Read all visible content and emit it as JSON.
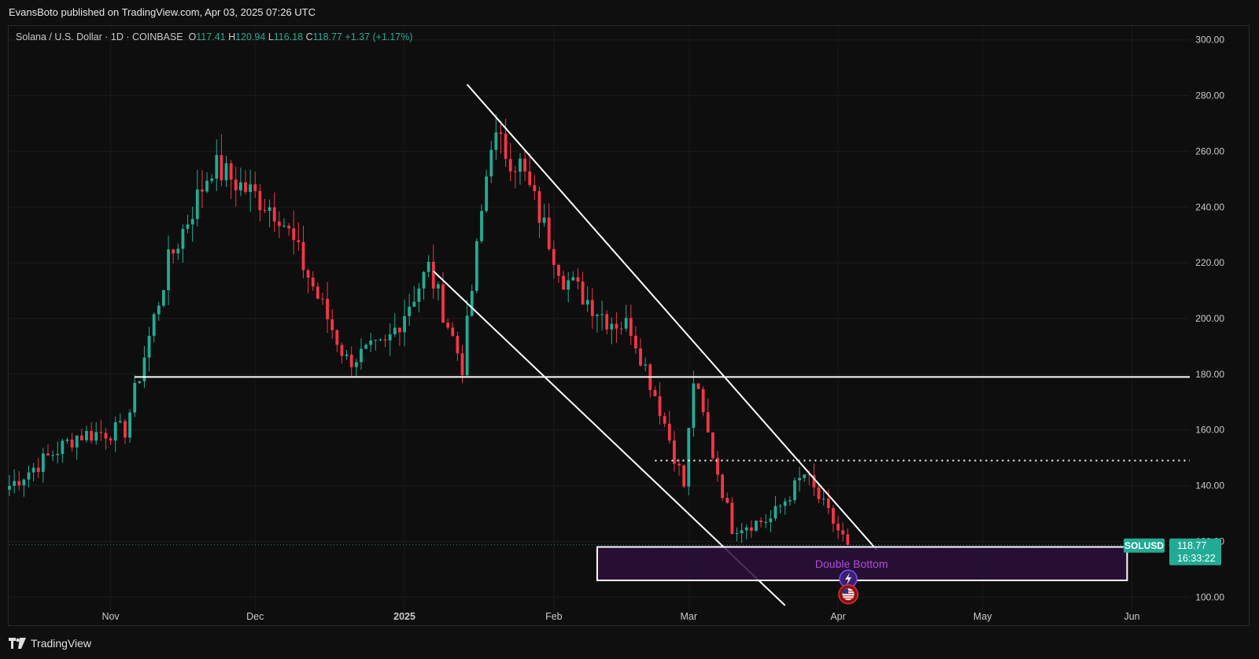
{
  "publish_line": "EvansBoto published on TradingView.com, Apr 03, 2025 07:26 UTC",
  "legend": {
    "symbol": "Solana / U.S. Dollar · 1D · COINBASE",
    "open_label": "O",
    "open": "117.41",
    "high_label": "H",
    "high": "120.94",
    "low_label": "L",
    "low": "116.18",
    "close_label": "C",
    "close": "118.77",
    "change": "+1.37 (+1.17%)"
  },
  "price_tag": {
    "symbol": "SOLUSD",
    "price": "118.77",
    "countdown": "16:33:22"
  },
  "footer": {
    "brand": "TradingView"
  },
  "colors": {
    "up": "#22ab94",
    "down": "#f23645",
    "zone_fill": "#2a0f3a",
    "zone_label": "#b24bd9"
  },
  "chart_data": {
    "type": "candlestick",
    "title": "Solana / U.S. Dollar · 1D · COINBASE",
    "xlabel": "",
    "ylabel": "",
    "ylim": [
      95,
      305
    ],
    "y_ticks": [
      "300.00",
      "280.00",
      "260.00",
      "240.00",
      "220.00",
      "200.00",
      "180.00",
      "160.00",
      "140.00",
      "120.00",
      "100.00"
    ],
    "x_ticks": [
      {
        "label": "Nov",
        "date": "2024-11-01",
        "bold": false
      },
      {
        "label": "Dec",
        "date": "2024-12-01",
        "bold": false
      },
      {
        "label": "2025",
        "date": "2025-01-01",
        "bold": true
      },
      {
        "label": "Feb",
        "date": "2025-02-01",
        "bold": false
      },
      {
        "label": "Mar",
        "date": "2025-03-01",
        "bold": false
      },
      {
        "label": "Apr",
        "date": "2025-04-01",
        "bold": false
      },
      {
        "label": "May",
        "date": "2025-05-01",
        "bold": false
      },
      {
        "label": "Jun",
        "date": "2025-06-01",
        "bold": false
      }
    ],
    "x_range": [
      "2024-10-11",
      "2025-06-13"
    ],
    "key_points": [
      {
        "date": "2024-10-11",
        "price": 140
      },
      {
        "date": "2024-10-25",
        "price": 158
      },
      {
        "date": "2024-11-04",
        "price": 160
      },
      {
        "date": "2024-11-13",
        "price": 220
      },
      {
        "date": "2024-11-22",
        "price": 255
      },
      {
        "date": "2024-12-06",
        "price": 238
      },
      {
        "date": "2024-12-20",
        "price": 185
      },
      {
        "date": "2024-12-28",
        "price": 190
      },
      {
        "date": "2025-01-06",
        "price": 218
      },
      {
        "date": "2025-01-13",
        "price": 183
      },
      {
        "date": "2025-01-19",
        "price": 265
      },
      {
        "date": "2025-01-25",
        "price": 255
      },
      {
        "date": "2025-02-03",
        "price": 215
      },
      {
        "date": "2025-02-12",
        "price": 200
      },
      {
        "date": "2025-02-17",
        "price": 197
      },
      {
        "date": "2025-02-23",
        "price": 168
      },
      {
        "date": "2025-02-28",
        "price": 140
      },
      {
        "date": "2025-03-02",
        "price": 178
      },
      {
        "date": "2025-03-10",
        "price": 125
      },
      {
        "date": "2025-03-18",
        "price": 128
      },
      {
        "date": "2025-03-25",
        "price": 144
      },
      {
        "date": "2025-04-01",
        "price": 124
      },
      {
        "date": "2025-04-03",
        "price": 118.77
      }
    ],
    "horizontal_levels": [
      {
        "price": 179,
        "start": "2024-11-06",
        "end": "2025-06-13",
        "style": "solid"
      },
      {
        "price": 149,
        "start": "2025-02-22",
        "end": "2025-06-13",
        "style": "dotted"
      }
    ],
    "trendlines": [
      {
        "from": {
          "date": "2025-01-14",
          "price": 284
        },
        "to": {
          "date": "2025-04-09",
          "price": 117
        }
      },
      {
        "from": {
          "date": "2025-01-07",
          "price": 217
        },
        "to": {
          "date": "2025-03-21",
          "price": 97
        }
      }
    ],
    "zone": {
      "label": "Double Bottom",
      "start": "2025-02-10",
      "end": "2025-05-31",
      "top": 118,
      "bottom": 106
    }
  }
}
